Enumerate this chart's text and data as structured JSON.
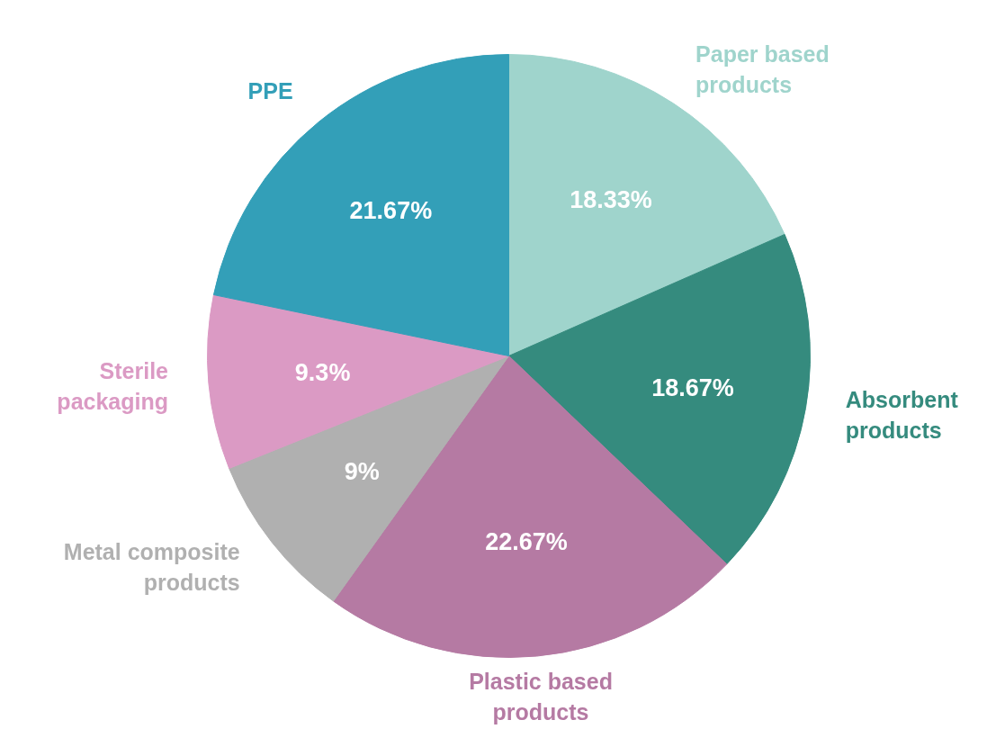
{
  "chart_data": {
    "type": "pie",
    "categories": [
      "Paper based products",
      "Absorbent products",
      "Plastic based products",
      "Metal composite products",
      "Sterile packaging",
      "PPE"
    ],
    "values": [
      18.33,
      18.67,
      22.67,
      9,
      9.3,
      21.67
    ],
    "colors": [
      "#9fd4cc",
      "#358b7e",
      "#b57aa3",
      "#b0b0b0",
      "#db9ac4",
      "#339fb8"
    ],
    "value_labels": [
      "18.33%",
      "18.67%",
      "22.67%",
      "9%",
      "9.3%",
      "21.67%"
    ]
  }
}
